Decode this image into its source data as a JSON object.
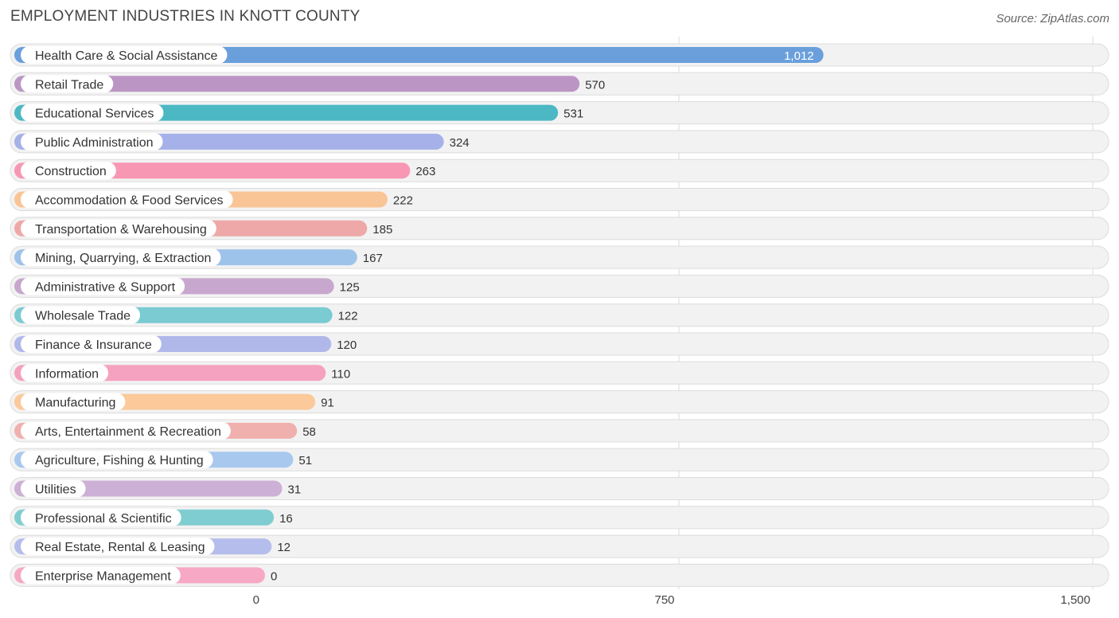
{
  "title": "EMPLOYMENT INDUSTRIES IN KNOTT COUNTY",
  "source": "Source: ZipAtlas.com",
  "chart_data": {
    "type": "bar",
    "orientation": "horizontal",
    "title": "EMPLOYMENT INDUSTRIES IN KNOTT COUNTY",
    "xlim": [
      0,
      1500
    ],
    "ticks": [
      0,
      750,
      1500
    ],
    "tick_labels": [
      "0",
      "750",
      "1,500"
    ],
    "grid": true,
    "categories": [
      "Health Care & Social Assistance",
      "Retail Trade",
      "Educational Services",
      "Public Administration",
      "Construction",
      "Accommodation & Food Services",
      "Transportation & Warehousing",
      "Mining, Quarrying, & Extraction",
      "Administrative & Support",
      "Wholesale Trade",
      "Finance & Insurance",
      "Information",
      "Manufacturing",
      "Arts, Entertainment & Recreation",
      "Agriculture, Fishing & Hunting",
      "Utilities",
      "Professional & Scientific",
      "Real Estate, Rental & Leasing",
      "Enterprise Management"
    ],
    "values": [
      1012,
      570,
      531,
      324,
      263,
      222,
      185,
      167,
      125,
      122,
      120,
      110,
      91,
      58,
      51,
      31,
      16,
      12,
      0
    ],
    "value_labels": [
      "1,012",
      "570",
      "531",
      "324",
      "263",
      "222",
      "185",
      "167",
      "125",
      "122",
      "120",
      "110",
      "91",
      "58",
      "51",
      "31",
      "16",
      "12",
      "0"
    ],
    "colors": [
      "#6a9fdc",
      "#bb96c4",
      "#4cb8c4",
      "#a5b1e8",
      "#f797b4",
      "#f9c596",
      "#eea8a8",
      "#9ec3ea",
      "#c8a7cf",
      "#7acbd2",
      "#b0b8ea",
      "#f5a1c0",
      "#fbc99a",
      "#f0b0ad",
      "#a8c8ee",
      "#cdb0d5",
      "#80cdd1",
      "#b5bdec",
      "#f7a8c5"
    ]
  }
}
